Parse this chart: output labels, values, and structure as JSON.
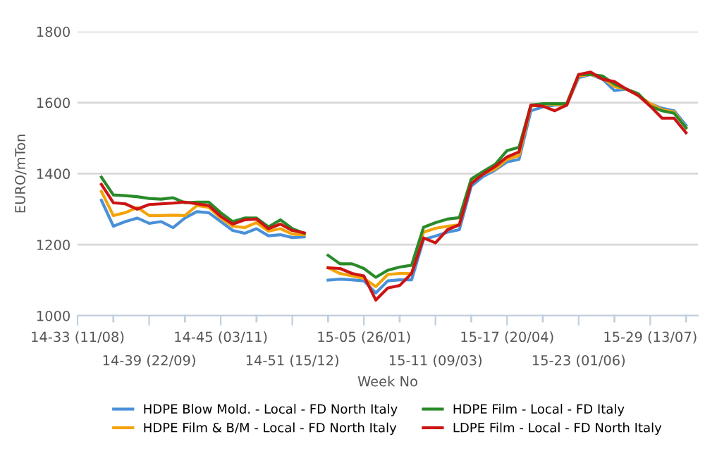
{
  "chart_data": {
    "type": "line",
    "xlabel": "Week No",
    "ylabel": "EURO/mTon",
    "categories": [
      "14-33 (11/08)",
      null,
      null,
      null,
      null,
      null,
      "14-39 (22/09)",
      null,
      null,
      null,
      null,
      null,
      "14-45 (03/11)",
      null,
      null,
      null,
      null,
      null,
      "14-51 (15/12)",
      null,
      null,
      null,
      null,
      null,
      "15-05 (26/01)",
      null,
      null,
      null,
      null,
      null,
      "15-11 (09/03)",
      null,
      null,
      null,
      null,
      null,
      "15-17 (20/04)",
      null,
      null,
      null,
      null,
      null,
      "15-23 (01/06)",
      null,
      null,
      null,
      null,
      null,
      "15-29 (13/07)",
      null,
      null,
      null
    ],
    "ylim": [
      1000,
      1800
    ],
    "yticks": [
      1000,
      1200,
      1400,
      1600,
      1800
    ],
    "grid": "y",
    "legend": "bottom",
    "marker": "none",
    "line_style": "solid",
    "series": [
      {
        "name": "HDPE Blow Mold. - Local - FD North Italy",
        "color": "#4a90d9",
        "values": [
          null,
          null,
          1325,
          1252,
          1265,
          1275,
          1260,
          1265,
          1248,
          1275,
          1293,
          1290,
          1265,
          1240,
          1232,
          1245,
          1225,
          1228,
          1220,
          1222,
          null,
          1100,
          1103,
          1101,
          1098,
          1064,
          1098,
          1101,
          1101,
          1215,
          1224,
          1235,
          1242,
          1365,
          1392,
          1410,
          1433,
          1440,
          1577,
          1588,
          1593,
          1593,
          1670,
          1679,
          1666,
          1634,
          1638,
          1620,
          1597,
          1584,
          1577,
          1536
        ]
      },
      {
        "name": "HDPE Film & B/M - Local - FD North Italy",
        "color": "#f4a30a",
        "values": [
          null,
          null,
          1350,
          1282,
          1290,
          1305,
          1282,
          1282,
          1283,
          1282,
          1310,
          1305,
          1275,
          1252,
          1248,
          1262,
          1238,
          1245,
          1230,
          1228,
          null,
          1135,
          1119,
          1112,
          1105,
          1082,
          1116,
          1119,
          1119,
          1235,
          1246,
          1252,
          1256,
          1379,
          1399,
          1413,
          1440,
          1451,
          1590,
          1595,
          1595,
          1593,
          1675,
          1679,
          1670,
          1645,
          1638,
          1620,
          1597,
          1580,
          1574,
          1529
        ]
      },
      {
        "name": "HDPE Film - Local - FD Italy",
        "color": "#2a8a2a",
        "values": [
          null,
          null,
          1390,
          1340,
          1338,
          1335,
          1330,
          1328,
          1332,
          1318,
          1320,
          1320,
          1290,
          1265,
          1275,
          1275,
          1250,
          1270,
          1245,
          1232,
          null,
          1170,
          1146,
          1146,
          1133,
          1108,
          1128,
          1137,
          1142,
          1249,
          1262,
          1272,
          1276,
          1385,
          1406,
          1426,
          1465,
          1474,
          1593,
          1597,
          1597,
          1597,
          1679,
          1679,
          1675,
          1652,
          1638,
          1625,
          1590,
          1577,
          1570,
          1529
        ]
      },
      {
        "name": "LDPE Film - Local - FD North Italy",
        "color": "#cc1414",
        "values": [
          null,
          null,
          1370,
          1318,
          1315,
          1300,
          1313,
          1315,
          1317,
          1320,
          1315,
          1310,
          1280,
          1258,
          1270,
          1272,
          1245,
          1258,
          1240,
          1233,
          null,
          1135,
          1133,
          1119,
          1112,
          1044,
          1078,
          1085,
          1119,
          1219,
          1205,
          1242,
          1256,
          1372,
          1399,
          1420,
          1447,
          1461,
          1593,
          1590,
          1577,
          1593,
          1679,
          1686,
          1666,
          1659,
          1638,
          1620,
          1590,
          1556,
          1556,
          1515
        ]
      }
    ]
  }
}
